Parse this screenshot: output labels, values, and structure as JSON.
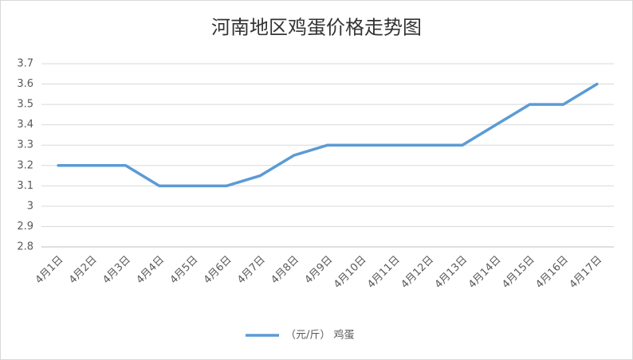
{
  "chart_data": {
    "type": "line",
    "title": "河南地区鸡蛋价格走势图",
    "categories": [
      "4月1日",
      "4月2日",
      "4月3日",
      "4月4日",
      "4月5日",
      "4月6日",
      "4月7日",
      "4月8日",
      "4月9日",
      "4月10日",
      "4月11日",
      "4月12日",
      "4月13日",
      "4月14日",
      "4月15日",
      "4月16日",
      "4月17日"
    ],
    "series": [
      {
        "name": "（元/斤） 鸡蛋",
        "color": "#5b9bd5",
        "values": [
          3.2,
          3.2,
          3.2,
          3.1,
          3.1,
          3.1,
          3.15,
          3.25,
          3.3,
          3.3,
          3.3,
          3.3,
          3.3,
          3.4,
          3.5,
          3.5,
          3.6
        ]
      }
    ],
    "ylim": [
      2.8,
      3.7
    ],
    "yticks": [
      2.8,
      2.9,
      3,
      3.1,
      3.2,
      3.3,
      3.4,
      3.5,
      3.6,
      3.7
    ],
    "grid": true,
    "legend": "bottom"
  }
}
